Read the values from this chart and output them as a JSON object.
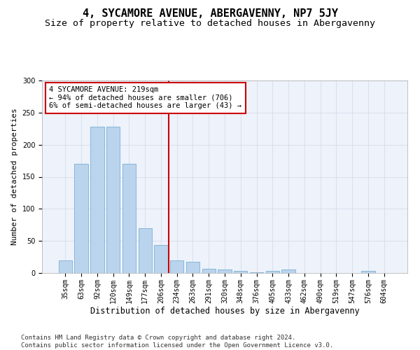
{
  "title": "4, SYCAMORE AVENUE, ABERGAVENNY, NP7 5JY",
  "subtitle": "Size of property relative to detached houses in Abergavenny",
  "xlabel": "Distribution of detached houses by size in Abergavenny",
  "ylabel": "Number of detached properties",
  "bar_labels": [
    "35sqm",
    "63sqm",
    "92sqm",
    "120sqm",
    "149sqm",
    "177sqm",
    "206sqm",
    "234sqm",
    "263sqm",
    "291sqm",
    "320sqm",
    "348sqm",
    "376sqm",
    "405sqm",
    "433sqm",
    "462sqm",
    "490sqm",
    "519sqm",
    "547sqm",
    "576sqm",
    "604sqm"
  ],
  "bar_values": [
    20,
    170,
    228,
    228,
    170,
    70,
    44,
    20,
    18,
    7,
    6,
    3,
    1,
    3,
    5,
    0,
    0,
    0,
    0,
    3,
    0
  ],
  "bar_color": "#bad4ee",
  "bar_edge_color": "#7aafd4",
  "vline_x": 6.5,
  "vline_color": "#cc0000",
  "annotation_text": "4 SYCAMORE AVENUE: 219sqm\n← 94% of detached houses are smaller (706)\n6% of semi-detached houses are larger (43) →",
  "annotation_box_color": "#ffffff",
  "annotation_box_edge": "#cc0000",
  "ylim": [
    0,
    300
  ],
  "yticks": [
    0,
    50,
    100,
    150,
    200,
    250,
    300
  ],
  "footer": "Contains HM Land Registry data © Crown copyright and database right 2024.\nContains public sector information licensed under the Open Government Licence v3.0.",
  "title_fontsize": 11,
  "subtitle_fontsize": 9.5,
  "xlabel_fontsize": 8.5,
  "ylabel_fontsize": 8,
  "tick_fontsize": 7,
  "annotation_fontsize": 7.5,
  "footer_fontsize": 6.5
}
